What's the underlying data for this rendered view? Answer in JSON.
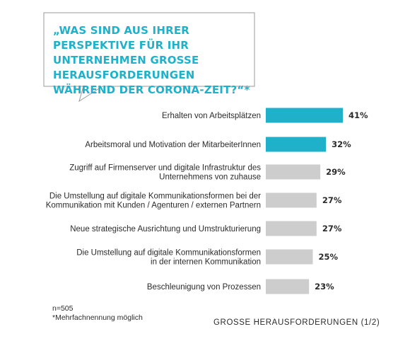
{
  "question": "„WAS SIND AUS IHRER PERSPEKTIVE FÜR IHR UNTERNEHMEN GROSSE HERAUSFORDERUNGEN WÄHREND DER CORONA-ZEIT?“*",
  "footnote": {
    "sample": "n=505",
    "multi": "*Mehrfachnennung möglich"
  },
  "section_title": "GROSSE HERAUSFORDERUNGEN (1/2)",
  "colors": {
    "highlight": "#1fb1c9",
    "default": "#cdcdcd",
    "bubble_border": "#9a9a9a"
  },
  "chart_data": {
    "type": "bar",
    "orientation": "horizontal",
    "categories": [
      [
        "Erhalten von Arbeitsplätzen"
      ],
      [
        "Arbeitsmoral und Motivation der MitarbeiterInnen"
      ],
      [
        "Zugriff auf Firmenserver und digitale Infrastruktur des",
        "Unternehmens von zuhause"
      ],
      [
        "Die Umstellung auf digitale Kommunikationsformen bei der",
        "Kommunikation mit Kunden / Agenturen / externen Partnern"
      ],
      [
        "Neue strategische Ausrichtung und Umstrukturierung"
      ],
      [
        "Die Umstellung auf digitale Kommunikationsformen",
        "in der internen Kommunikation"
      ],
      [
        "Beschleunigung von Prozessen"
      ]
    ],
    "values": [
      41,
      32,
      29,
      27,
      27,
      25,
      23
    ],
    "value_labels": [
      "41%",
      "32%",
      "29%",
      "27%",
      "27%",
      "25%",
      "23%"
    ],
    "highlighted": [
      true,
      true,
      false,
      false,
      false,
      false,
      false
    ],
    "unit": "%"
  }
}
